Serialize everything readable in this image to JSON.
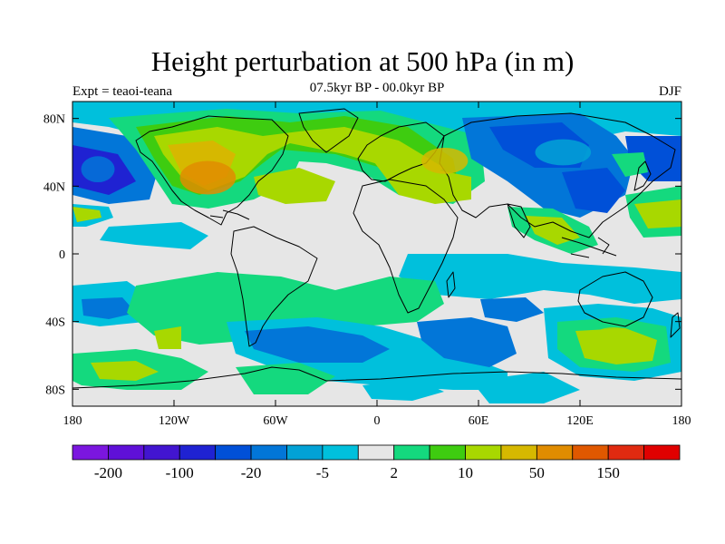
{
  "title": "Height perturbation at 500 hPa (in m)",
  "subtitle": "07.5kyr BP - 00.0kyr BP",
  "experiment": "Expt = teaoi-teana",
  "season": "DJF",
  "map": {
    "projection": "cylindrical equidistant",
    "lon_range": [
      -180,
      180
    ],
    "lat_range": [
      -90,
      90
    ],
    "lon_ticks": [
      {
        "value": -180,
        "label": "180"
      },
      {
        "value": -120,
        "label": "120W"
      },
      {
        "value": -60,
        "label": "60W"
      },
      {
        "value": 0,
        "label": "0"
      },
      {
        "value": 60,
        "label": "60E"
      },
      {
        "value": 120,
        "label": "120E"
      },
      {
        "value": 180,
        "label": "180"
      }
    ],
    "lat_ticks": [
      {
        "value": 80,
        "label": "80N"
      },
      {
        "value": 40,
        "label": "40N"
      },
      {
        "value": 0,
        "label": "0"
      },
      {
        "value": -40,
        "label": "40S"
      },
      {
        "value": -80,
        "label": "80S"
      }
    ],
    "missing_color": "#e6e6e6"
  },
  "colorbar": {
    "colors": [
      "#7b16df",
      "#5f10d8",
      "#4215d0",
      "#1f22d2",
      "#0050d8",
      "#0276d8",
      "#02a2d6",
      "#00c0dc",
      "#e6e6e6",
      "#14d97e",
      "#3ecc10",
      "#a8d800",
      "#d6b800",
      "#e08c00",
      "#e05800",
      "#e02a10",
      "#e00000"
    ],
    "tick_labels": [
      "-200",
      "-100",
      "-20",
      "-5",
      "2",
      "10",
      "50",
      "150"
    ]
  },
  "features": [
    {
      "name": "north-atlantic-positive",
      "lon": -100,
      "lat": 45,
      "rx": 30,
      "ry": 18,
      "level": 13
    },
    {
      "name": "eurasia-positive",
      "lon": 40,
      "lat": 55,
      "rx": 25,
      "ry": 14,
      "level": 12
    },
    {
      "name": "siberia-negative",
      "lon": 110,
      "lat": 60,
      "rx": 30,
      "ry": 14,
      "level": 6
    },
    {
      "name": "pacific-negative",
      "lon": -165,
      "lat": 50,
      "rx": 18,
      "ry": 14,
      "level": 5
    },
    {
      "name": "southern-pacific-positive",
      "lon": 140,
      "lat": -50,
      "rx": 25,
      "ry": 12,
      "level": 11
    }
  ]
}
